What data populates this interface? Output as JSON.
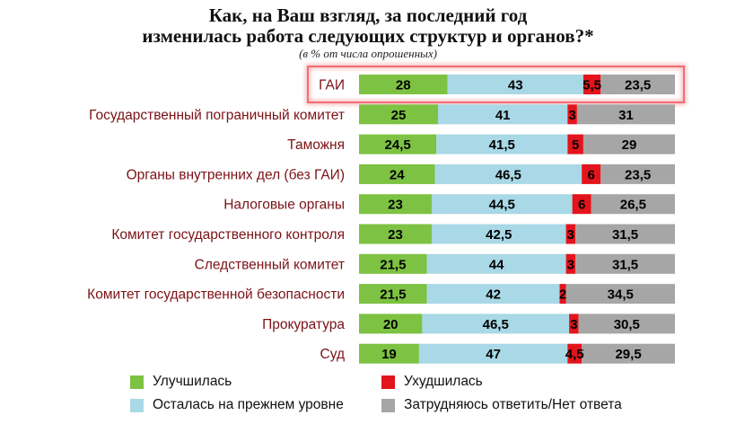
{
  "chart_data": {
    "type": "bar",
    "stacked": true,
    "orientation": "horizontal",
    "title_line1": "Как, на Ваш взгляд, за последний год",
    "title_line2": "изменилась работа следующих структур и органов?*",
    "subtitle": "(в % от числа опрошенных)",
    "highlighted_category": "ГАИ",
    "categories": [
      "ГАИ",
      "Государственный пограничный комитет",
      "Таможня",
      "Органы внутренних дел (без ГАИ)",
      "Налоговые органы",
      "Комитет государственного контроля",
      "Следственный комитет",
      "Комитет государственной безопасности",
      "Прокуратура",
      "Суд"
    ],
    "series": [
      {
        "name": "Улучшилась",
        "color": "#7dc242",
        "values": [
          28,
          25,
          24.5,
          24,
          23,
          23,
          21.5,
          21.5,
          20,
          19
        ]
      },
      {
        "name": "Осталась на прежнем уровне",
        "color": "#a9d8e6",
        "values": [
          43,
          41,
          41.5,
          46.5,
          44.5,
          42.5,
          44,
          42,
          46.5,
          47
        ]
      },
      {
        "name": "Ухудшилась",
        "color": "#e3141c",
        "values": [
          5.5,
          3,
          5,
          6,
          6,
          3,
          3,
          2,
          3,
          4.5
        ]
      },
      {
        "name": "Затрудняюсь ответить/Нет ответа",
        "color": "#a6a6a6",
        "values": [
          23.5,
          31,
          29,
          23.5,
          26.5,
          31.5,
          31.5,
          34.5,
          30.5,
          29.5
        ]
      }
    ],
    "value_labels": [
      [
        "28",
        "43",
        "5,5",
        "23,5"
      ],
      [
        "25",
        "41",
        "3",
        "31"
      ],
      [
        "24,5",
        "41,5",
        "5",
        "29"
      ],
      [
        "24",
        "46,5",
        "6",
        "23,5"
      ],
      [
        "23",
        "44,5",
        "6",
        "26,5"
      ],
      [
        "23",
        "42,5",
        "3",
        "31,5"
      ],
      [
        "21,5",
        "44",
        "3",
        "31,5"
      ],
      [
        "21,5",
        "42",
        "2",
        "34,5"
      ],
      [
        "20",
        "46,5",
        "3",
        "30,5"
      ],
      [
        "19",
        "47",
        "4,5",
        "29,5"
      ]
    ],
    "xlim": [
      0,
      100
    ],
    "legend_position": "bottom"
  },
  "colors": {
    "category_label": "#7b1216",
    "highlight_border": "#ef6f73",
    "value_text": "#000000"
  }
}
